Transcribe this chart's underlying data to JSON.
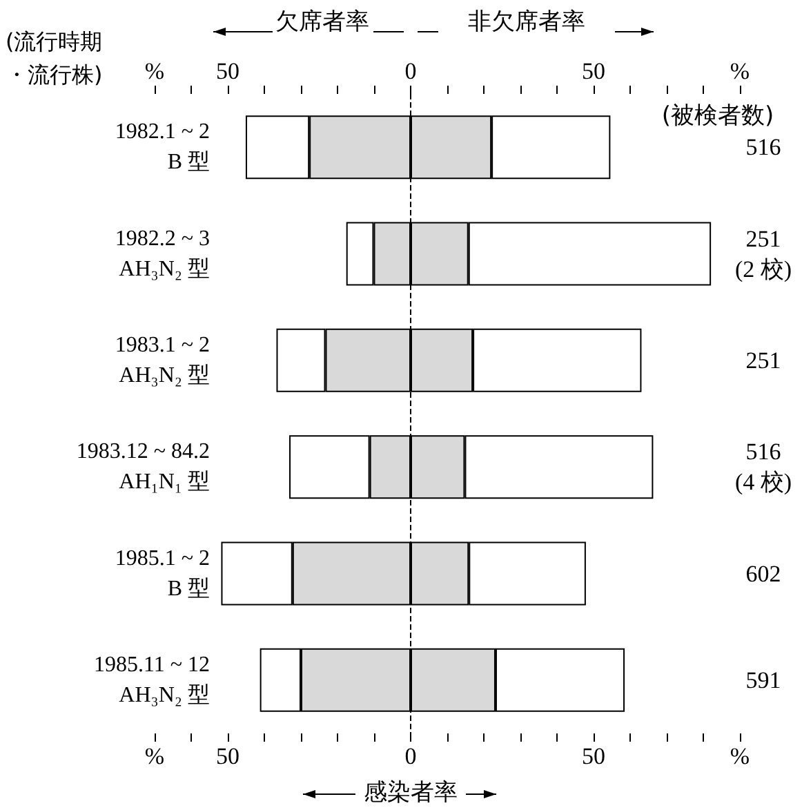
{
  "chart_data": {
    "type": "bar",
    "orientation": "horizontal",
    "stacked": true,
    "ylabel": "(流行時期・流行株)",
    "categories": [
      "1982.1 ~ 2\nB 型",
      "1982.2 ~ 3\nAH₃N₂ 型",
      "1983.1 ~ 2\nAH₃N₂ 型",
      "1983.12 ~ 84.2\nAH₁N₁ 型",
      "1985.1 ~ 2\nB 型",
      "1985.11 ~ 12\nAH₃N₂ 型"
    ],
    "series": [
      {
        "color": "#d9d9d9",
        "values": [
          -27.7,
          -10.1,
          -23.3,
          -11.2,
          -32.3,
          -30.0
        ]
      },
      {
        "color": "#ffffff",
        "values": [
          -17.4,
          -7.5,
          -13.4,
          -22.0,
          -19.5,
          -11.2
        ]
      },
      {
        "color": "#d9d9d9",
        "values": [
          22.1,
          15.8,
          17.0,
          14.8,
          15.9,
          23.2
        ]
      },
      {
        "color": "#ffffff",
        "values": [
          32.5,
          66.3,
          46.1,
          51.5,
          32.0,
          35.3
        ]
      }
    ],
    "xlim": [
      -70,
      90
    ],
    "xticks": [
      {
        "value": -70,
        "label": "%"
      },
      {
        "value": -60,
        "label": null
      },
      {
        "value": -50,
        "label": "50"
      },
      {
        "value": -40,
        "label": null
      },
      {
        "value": -30,
        "label": null
      },
      {
        "value": -20,
        "label": null
      },
      {
        "value": -10,
        "label": null
      },
      0,
      {
        "value": 10,
        "label": null
      },
      {
        "value": 20,
        "label": null
      },
      {
        "value": 30,
        "label": null
      },
      {
        "value": 40,
        "label": null
      },
      50,
      {
        "value": 60,
        "label": null
      },
      {
        "value": 70,
        "label": null
      },
      {
        "value": 80,
        "label": null
      },
      {
        "value": 90,
        "label": "%"
      }
    ],
    "x2lim": [
      -70,
      90
    ],
    "x2ticks": [
      {
        "value": -70,
        "label": "%"
      },
      {
        "value": -60,
        "label": null
      },
      {
        "value": -50,
        "label": "50"
      },
      {
        "value": -40,
        "label": null
      },
      {
        "value": -30,
        "label": null
      },
      {
        "value": -20,
        "label": null
      },
      {
        "value": -10,
        "label": null
      },
      0,
      {
        "value": 10,
        "label": null
      },
      {
        "value": 20,
        "label": null
      },
      {
        "value": 30,
        "label": null
      },
      {
        "value": 40,
        "label": null
      },
      50,
      {
        "value": 60,
        "label": null
      },
      {
        "value": 70,
        "label": null
      },
      {
        "value": 80,
        "label": null
      },
      {
        "value": 90,
        "label": "%"
      }
    ],
    "ref_lines": [
      {
        "axis": "x",
        "value": 0,
        "color": "#000000",
        "line_style": "dashed"
      }
    ],
    "grid": false,
    "annotations": [
      "欠席者率",
      "非欠席者率",
      "感染者率",
      "(被検者数)",
      "516",
      "251\n(2 校)",
      "251",
      "516\n(4 校)",
      "602",
      "591"
    ]
  }
}
